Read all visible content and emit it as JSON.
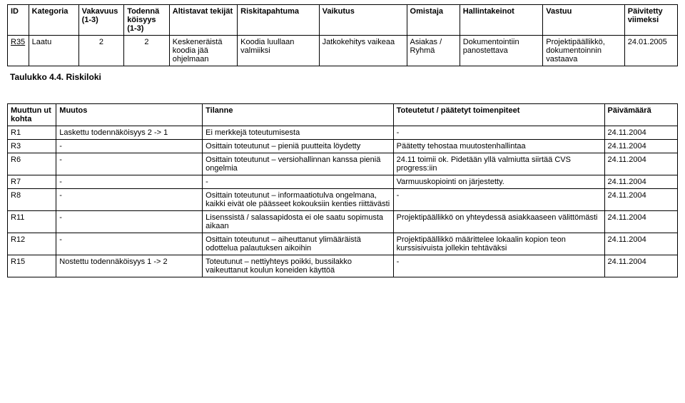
{
  "table1": {
    "headers": {
      "id": "ID",
      "kategoria": "Kategoria",
      "vakavuus": "Vakavuus (1-3)",
      "todenna": "Todennä köisyys (1-3)",
      "altistavat": "Altistavat tekijät",
      "riski": "Riskitapahtuma",
      "vaikutus": "Vaikutus",
      "omistaja": "Omistaja",
      "hallinta": "Hallintakeinot",
      "vastuu": "Vastuu",
      "paivitetty": "Päivitetty viimeksi"
    },
    "row": {
      "id": "R35",
      "kategoria": "Laatu",
      "vakavuus": "2",
      "todenna": "2",
      "altistavat": "Keskeneräistä koodia jää ohjelmaan",
      "riski": "Koodia luullaan valmiiksi",
      "vaikutus": "Jatkokehitys vaikeaa",
      "omistaja": "Asiakas / Ryhmä",
      "hallinta": "Dokumentointiin panostettava",
      "vastuu": "Projektipäällikkö, dokumentoinnin vastaava",
      "paivitetty": "24.01.2005"
    }
  },
  "caption1": "Taulukko 4.4. Riskiloki",
  "table2": {
    "headers": {
      "muuttun": "Muuttun ut kohta",
      "muutos": "Muutos",
      "tilanne": "Tilanne",
      "toteutetut": "Toteutetut / päätetyt toimenpiteet",
      "paiva": "Päivämäärä"
    },
    "rows": [
      {
        "c1": "R1",
        "c2": "Laskettu todennäköisyys 2 -> 1",
        "c3": "Ei merkkejä toteutumisesta",
        "c4": "-",
        "c5": "24.11.2004"
      },
      {
        "c1": "R3",
        "c2": "-",
        "c3": "Osittain toteutunut – pieniä puutteita löydetty",
        "c4": "Päätetty tehostaa muutostenhallintaa",
        "c5": "24.11.2004"
      },
      {
        "c1": "R6",
        "c2": "-",
        "c3": "Osittain toteutunut – versiohallinnan kanssa pieniä ongelmia",
        "c4": "24.11 toimii ok. Pidetään yllä valmiutta siirtää CVS progress:iin",
        "c5": "24.11.2004"
      },
      {
        "c1": "R7",
        "c2": "-",
        "c3": "-",
        "c4": "Varmuuskopiointi on järjestetty.",
        "c5": "24.11.2004"
      },
      {
        "c1": "R8",
        "c2": "-",
        "c3": "Osittain toteutunut – informaatiotulva ongelmana, kaikki eivät ole päässeet kokouksiin kenties riittävästi",
        "c4": "-",
        "c5": "24.11.2004"
      },
      {
        "c1": "R11",
        "c2": "-",
        "c3": "Lisenssistä / salassapidosta ei ole saatu sopimusta aikaan",
        "c4": "Projektipäällikkö on yhteydessä asiakkaaseen välittömästi",
        "c5": "24.11.2004"
      },
      {
        "c1": "R12",
        "c2": "-",
        "c3": "Osittain toteutunut – aiheuttanut ylimääräistä odottelua palautuksen aikoihin",
        "c4": "Projektipäällikkö määrittelee lokaalin kopion teon kurssisivuista jollekin tehtäväksi",
        "c5": "24.11.2004"
      },
      {
        "c1": "R15",
        "c2": "Nostettu todennäköisyys 1 -> 2",
        "c3": "Toteutunut – nettiyhteys poikki, bussilakko vaikeuttanut koulun koneiden käyttöä",
        "c4": "-",
        "c5": "24.11.2004"
      }
    ]
  }
}
